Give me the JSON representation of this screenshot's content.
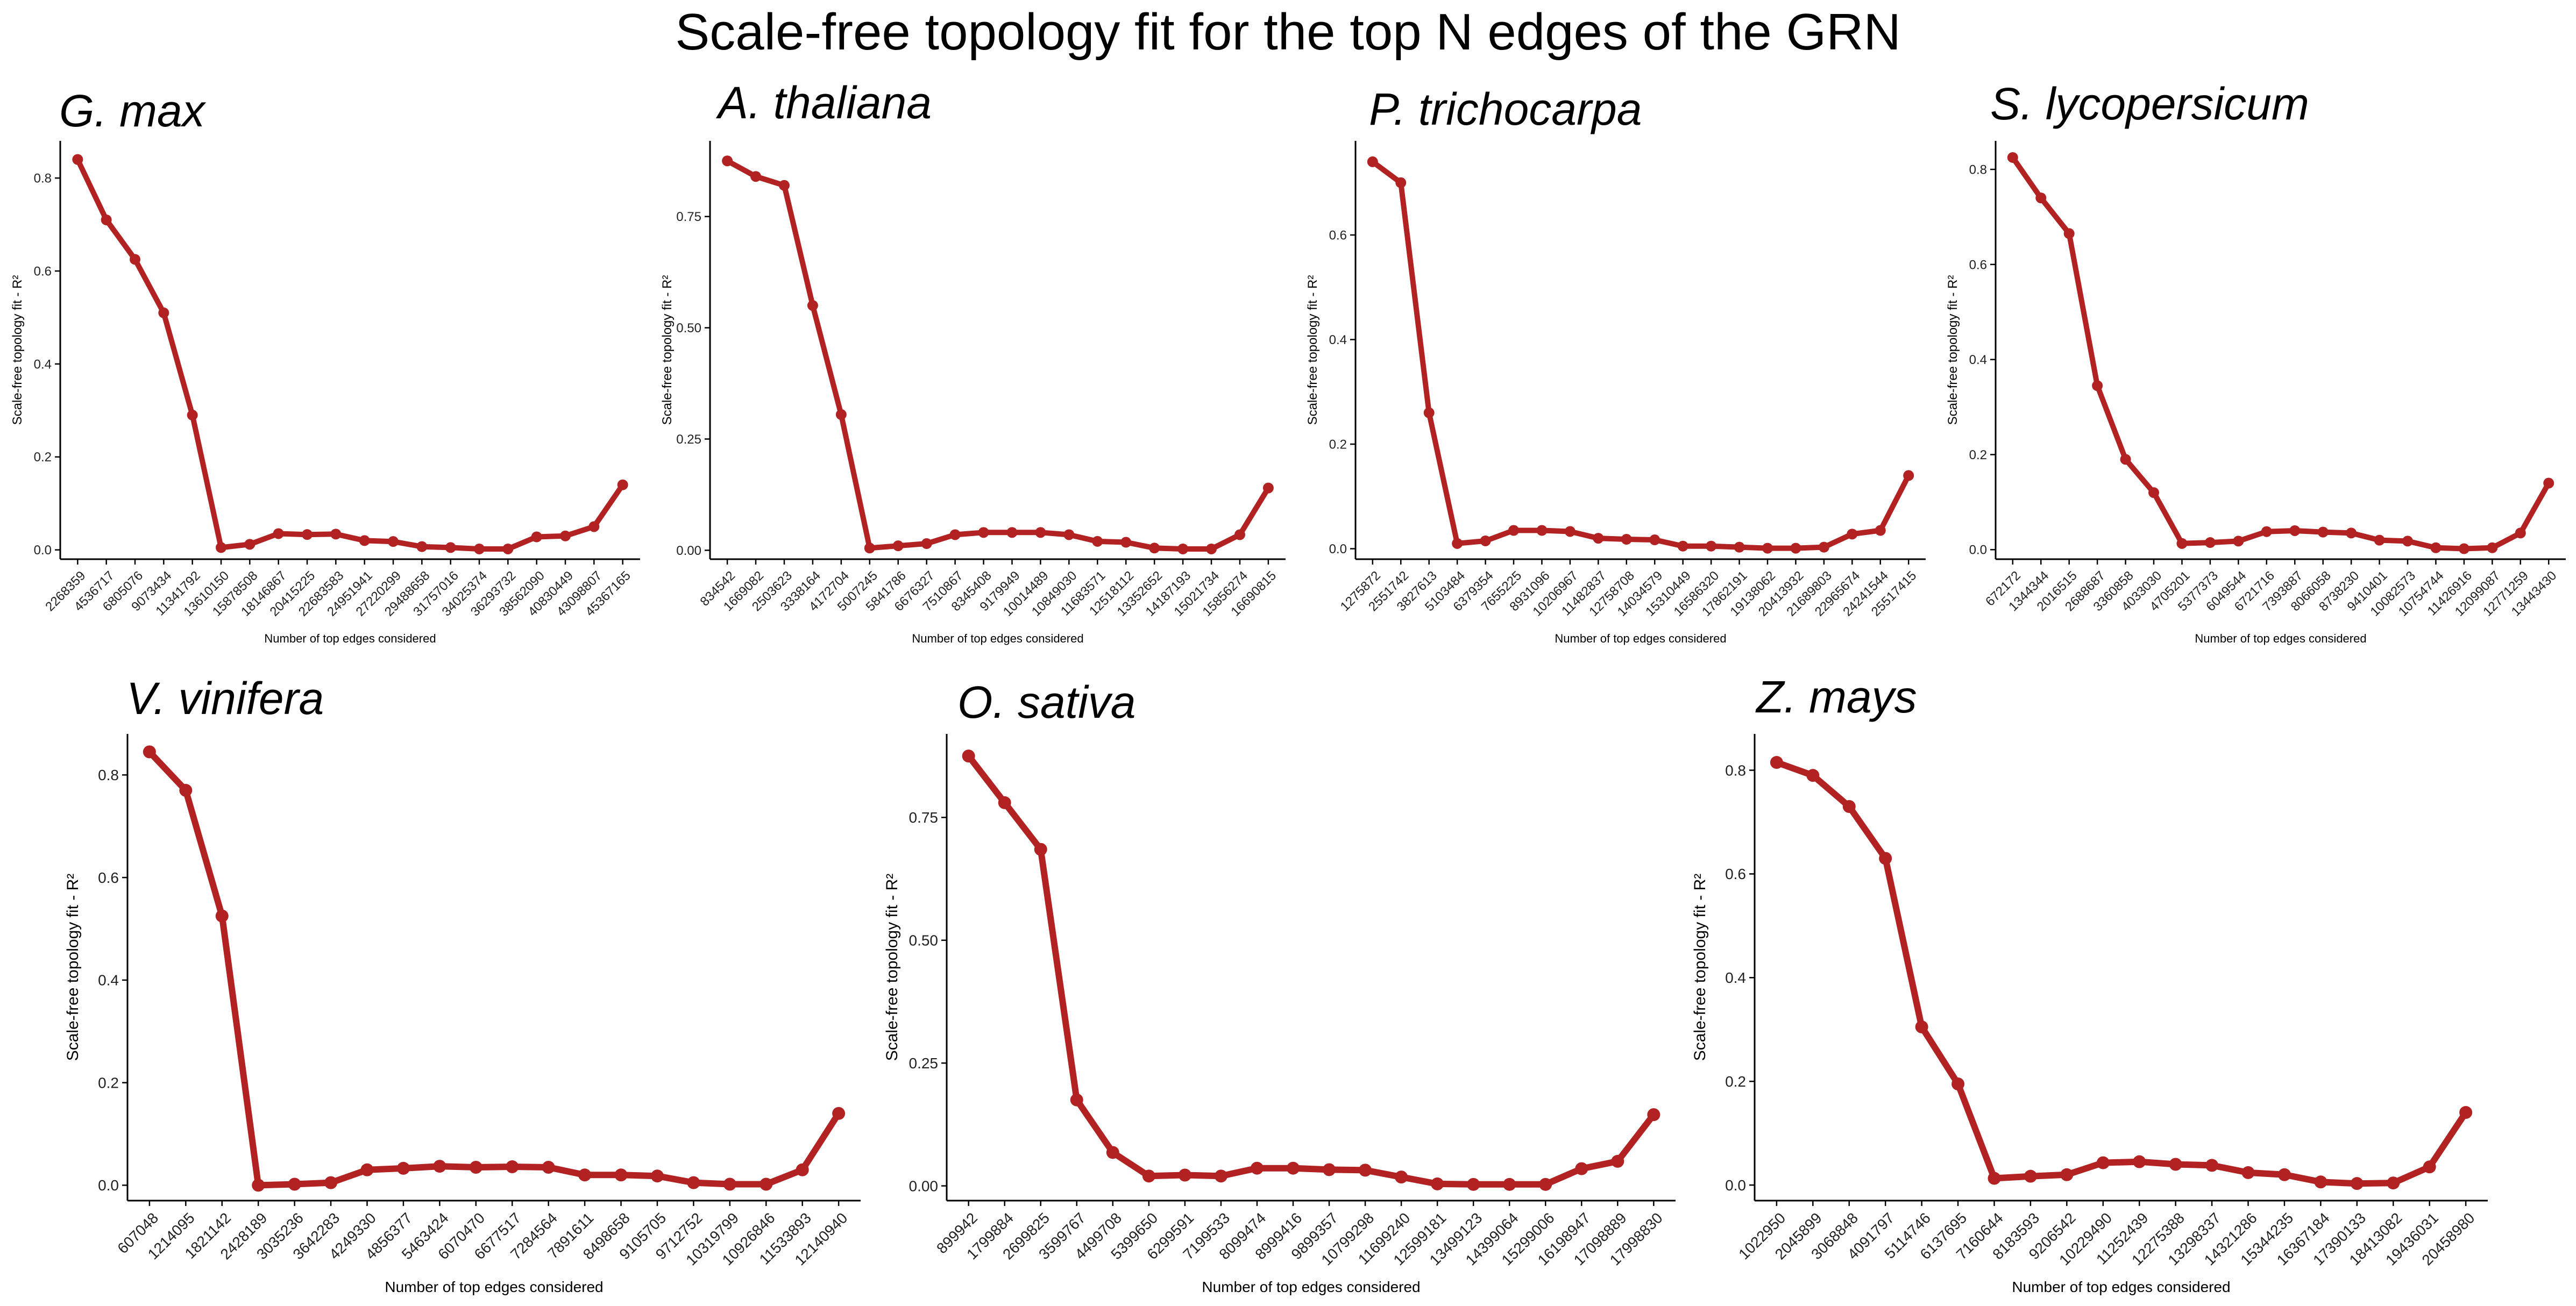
{
  "title": "Scale-free topology fit for the top N edges of the GRN",
  "style": {
    "line_color": "#B22222",
    "axis_color": "#000000",
    "background": "#ffffff"
  },
  "chart_data": [
    {
      "type": "line",
      "title": "G. max",
      "xlabel": "Number of top edges considered",
      "ylabel": "Scale-free topology fit - R²",
      "grid": false,
      "legend": "none",
      "ylim": [
        -0.02,
        0.88
      ],
      "y_ticks": [
        0.0,
        0.2,
        0.4,
        0.6,
        0.8
      ],
      "y_tick_labels": [
        "0.0",
        "0.2",
        "0.4",
        "0.6",
        "0.8"
      ],
      "x": [
        "2268359",
        "4536717",
        "6805076",
        "9073434",
        "11341792",
        "13610150",
        "15878508",
        "18146867",
        "20415225",
        "22683583",
        "24951941",
        "27220299",
        "29488658",
        "31757016",
        "34025374",
        "36293732",
        "38562090",
        "40830449",
        "43098807",
        "45367165"
      ],
      "values": [
        0.84,
        0.71,
        0.625,
        0.51,
        0.29,
        0.005,
        0.012,
        0.035,
        0.033,
        0.034,
        0.02,
        0.018,
        0.007,
        0.005,
        0.002,
        0.002,
        0.028,
        0.03,
        0.05,
        0.14
      ]
    },
    {
      "type": "line",
      "title": "A. thaliana",
      "xlabel": "Number of top edges considered",
      "ylabel": "Scale-free topology fit - R²",
      "grid": false,
      "legend": "none",
      "ylim": [
        -0.02,
        0.92
      ],
      "y_ticks": [
        0.0,
        0.25,
        0.5,
        0.75
      ],
      "y_tick_labels": [
        "0.00",
        "0.25",
        "0.50",
        "0.75"
      ],
      "x": [
        "834542",
        "1669082",
        "2503623",
        "3338164",
        "4172704",
        "5007245",
        "5841786",
        "6676327",
        "7510867",
        "8345408",
        "9179949",
        "10014489",
        "10849030",
        "11683571",
        "12518112",
        "13352652",
        "14187193",
        "15021734",
        "15856274",
        "16690815"
      ],
      "values": [
        0.875,
        0.84,
        0.82,
        0.55,
        0.305,
        0.005,
        0.01,
        0.015,
        0.035,
        0.04,
        0.04,
        0.04,
        0.035,
        0.02,
        0.018,
        0.005,
        0.003,
        0.003,
        0.035,
        0.14
      ]
    },
    {
      "type": "line",
      "title": "P. trichocarpa",
      "xlabel": "Number of top edges considered",
      "ylabel": "Scale-free topology fit - R²",
      "grid": false,
      "legend": "none",
      "ylim": [
        -0.02,
        0.78
      ],
      "y_ticks": [
        0.0,
        0.2,
        0.4,
        0.6
      ],
      "y_tick_labels": [
        "0.0",
        "0.2",
        "0.4",
        "0.6"
      ],
      "x": [
        "1275872",
        "2551742",
        "3827613",
        "5103484",
        "6379354",
        "7655225",
        "8931096",
        "10206967",
        "11482837",
        "12758708",
        "14034579",
        "15310449",
        "16586320",
        "17862191",
        "19138062",
        "20413932",
        "21689803",
        "22965674",
        "24241544",
        "25517415"
      ],
      "values": [
        0.74,
        0.7,
        0.26,
        0.01,
        0.015,
        0.035,
        0.035,
        0.033,
        0.02,
        0.018,
        0.017,
        0.005,
        0.005,
        0.003,
        0.001,
        0.001,
        0.003,
        0.028,
        0.035,
        0.14
      ]
    },
    {
      "type": "line",
      "title": "S. lycopersicum",
      "xlabel": "Number of top edges considered",
      "ylabel": "Scale-free topology fit - R²",
      "grid": false,
      "legend": "none",
      "ylim": [
        -0.02,
        0.86
      ],
      "y_ticks": [
        0.0,
        0.2,
        0.4,
        0.6,
        0.8
      ],
      "y_tick_labels": [
        "0.0",
        "0.2",
        "0.4",
        "0.6",
        "0.8"
      ],
      "x": [
        "672172",
        "1344344",
        "2016515",
        "2688687",
        "3360858",
        "4033030",
        "4705201",
        "5377373",
        "6049544",
        "6721716",
        "7393887",
        "8066058",
        "8738230",
        "9410401",
        "10082573",
        "10754744",
        "11426916",
        "12099087",
        "12771259",
        "13443430"
      ],
      "values": [
        0.825,
        0.74,
        0.665,
        0.345,
        0.19,
        0.12,
        0.013,
        0.015,
        0.018,
        0.038,
        0.04,
        0.037,
        0.035,
        0.02,
        0.018,
        0.004,
        0.002,
        0.004,
        0.035,
        0.14
      ]
    },
    {
      "type": "line",
      "title": "V. vinifera",
      "xlabel": "Number of top edges considered",
      "ylabel": "Scale-free topology fit - R²",
      "grid": false,
      "legend": "none",
      "ylim": [
        -0.03,
        0.88
      ],
      "y_ticks": [
        0.0,
        0.2,
        0.4,
        0.6,
        0.8
      ],
      "y_tick_labels": [
        "0.0",
        "0.2",
        "0.4",
        "0.6",
        "0.8"
      ],
      "x": [
        "607048",
        "1214095",
        "1821142",
        "2428189",
        "3035236",
        "3642283",
        "4249330",
        "4856377",
        "5463424",
        "6070470",
        "6677517",
        "7284564",
        "7891611",
        "8498658",
        "9105705",
        "9712752",
        "10319799",
        "10926846",
        "11533893",
        "12140940"
      ],
      "values": [
        0.845,
        0.77,
        0.525,
        0.0,
        0.002,
        0.005,
        0.03,
        0.033,
        0.037,
        0.035,
        0.036,
        0.035,
        0.02,
        0.02,
        0.018,
        0.005,
        0.002,
        0.002,
        0.03,
        0.14
      ]
    },
    {
      "type": "line",
      "title": "O. sativa",
      "xlabel": "Number of top edges considered",
      "ylabel": "Scale-free topology fit - R²",
      "grid": false,
      "legend": "none",
      "ylim": [
        -0.03,
        0.92
      ],
      "y_ticks": [
        0.0,
        0.25,
        0.5,
        0.75
      ],
      "y_tick_labels": [
        "0.00",
        "0.25",
        "0.50",
        "0.75"
      ],
      "x": [
        "899942",
        "1799884",
        "2699825",
        "3599767",
        "4499708",
        "5399650",
        "6299591",
        "7199533",
        "8099474",
        "8999416",
        "9899357",
        "10799298",
        "11699240",
        "12599181",
        "13499123",
        "14399064",
        "15299006",
        "16198947",
        "17098889",
        "17998830"
      ],
      "values": [
        0.875,
        0.78,
        0.685,
        0.175,
        0.068,
        0.02,
        0.022,
        0.02,
        0.036,
        0.036,
        0.033,
        0.032,
        0.018,
        0.004,
        0.003,
        0.003,
        0.003,
        0.035,
        0.05,
        0.145
      ]
    },
    {
      "type": "line",
      "title": "Z. mays",
      "xlabel": "Number of top edges considered",
      "ylabel": "Scale-free topology fit - R²",
      "grid": false,
      "legend": "none",
      "ylim": [
        -0.03,
        0.87
      ],
      "y_ticks": [
        0.0,
        0.2,
        0.4,
        0.6,
        0.8
      ],
      "y_tick_labels": [
        "0.0",
        "0.2",
        "0.4",
        "0.6",
        "0.8"
      ],
      "x": [
        "1022950",
        "2045899",
        "3068848",
        "4091797",
        "5114746",
        "6137695",
        "7160644",
        "8183593",
        "9206542",
        "10229490",
        "11252439",
        "12275388",
        "13298337",
        "14321286",
        "15344235",
        "16367184",
        "17390133",
        "18413082",
        "19436031",
        "20458980"
      ],
      "values": [
        0.815,
        0.79,
        0.73,
        0.63,
        0.305,
        0.195,
        0.013,
        0.017,
        0.02,
        0.043,
        0.045,
        0.04,
        0.038,
        0.024,
        0.02,
        0.006,
        0.003,
        0.004,
        0.035,
        0.14
      ]
    }
  ]
}
